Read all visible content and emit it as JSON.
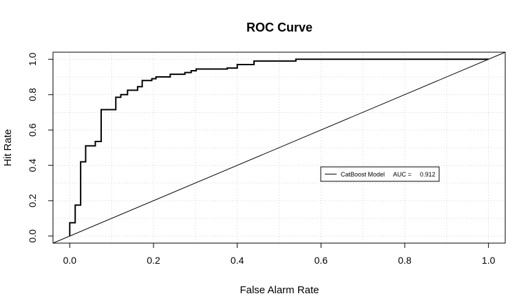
{
  "chart_data": {
    "type": "line",
    "title": "ROC Curve",
    "xlabel": "False Alarm Rate",
    "ylabel": "Hit Rate",
    "xlim": [
      -0.04,
      1.04
    ],
    "ylim": [
      -0.04,
      1.04
    ],
    "x_ticks": [
      "0.0",
      "0.2",
      "0.4",
      "0.6",
      "0.8",
      "1.0"
    ],
    "y_ticks": [
      "0.0",
      "0.2",
      "0.4",
      "0.6",
      "0.8",
      "1.0"
    ],
    "grid": true,
    "legend_position": "center-right",
    "legend": {
      "label": "CatBoost Model",
      "auc_label": "AUC =",
      "auc_value": "0.912"
    },
    "series": [
      {
        "name": "CatBoost Model",
        "x": [
          0,
          0,
          0.013,
          0.013,
          0.026,
          0.026,
          0.038,
          0.038,
          0.061,
          0.061,
          0.075,
          0.075,
          0.11,
          0.11,
          0.122,
          0.122,
          0.138,
          0.138,
          0.162,
          0.162,
          0.173,
          0.173,
          0.196,
          0.196,
          0.206,
          0.206,
          0.24,
          0.24,
          0.275,
          0.275,
          0.29,
          0.29,
          0.302,
          0.302,
          0.376,
          0.376,
          0.4,
          0.4,
          0.44,
          0.44,
          0.54,
          0.54,
          1.0
        ],
        "y": [
          0,
          0.075,
          0.075,
          0.175,
          0.175,
          0.42,
          0.42,
          0.51,
          0.51,
          0.535,
          0.535,
          0.715,
          0.715,
          0.785,
          0.785,
          0.8,
          0.8,
          0.825,
          0.825,
          0.845,
          0.845,
          0.88,
          0.88,
          0.89,
          0.89,
          0.9,
          0.9,
          0.915,
          0.915,
          0.925,
          0.925,
          0.935,
          0.935,
          0.945,
          0.945,
          0.95,
          0.95,
          0.97,
          0.97,
          0.99,
          0.99,
          1.0,
          1.0
        ]
      },
      {
        "x": [
          -0.04,
          1.04
        ],
        "y": [
          -0.04,
          1.04
        ]
      }
    ]
  }
}
